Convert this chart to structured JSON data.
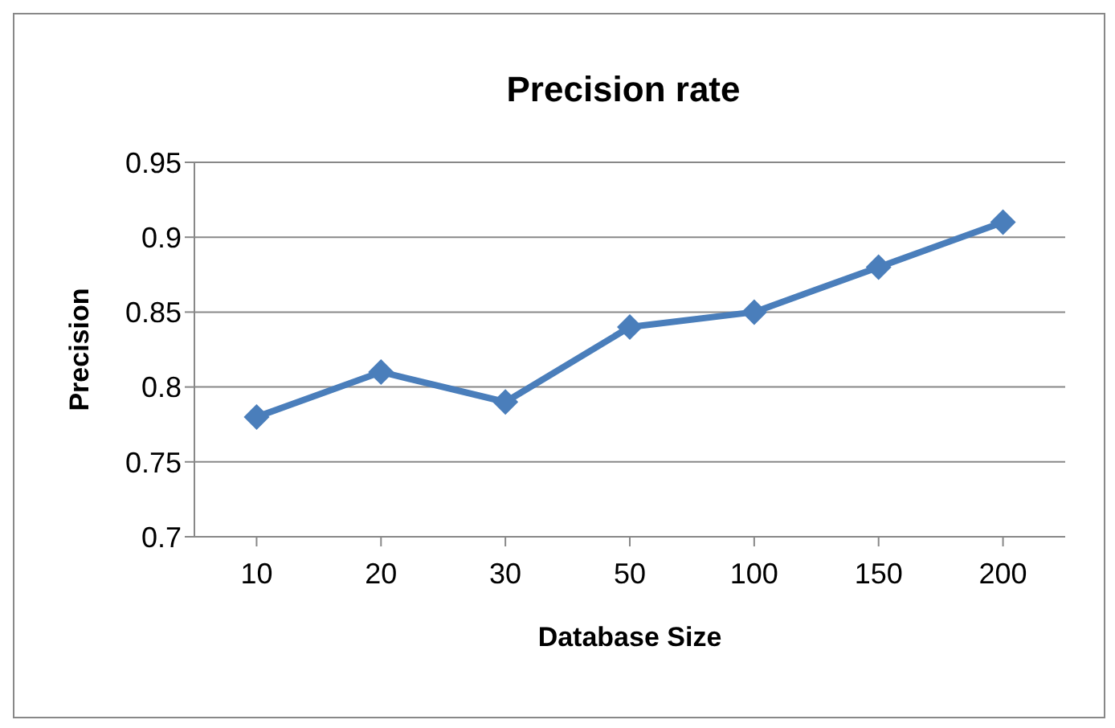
{
  "chart_data": {
    "type": "line",
    "title": "Precision rate",
    "xlabel": "Database Size",
    "ylabel": "Precision",
    "categories": [
      "10",
      "20",
      "30",
      "50",
      "100",
      "150",
      "200"
    ],
    "series": [
      {
        "color": "#4a7ebb",
        "values": [
          0.78,
          0.81,
          0.79,
          0.84,
          0.85,
          0.88,
          0.91
        ]
      }
    ],
    "ylim": [
      0.7,
      0.95
    ],
    "yticks": [
      0.7,
      0.75,
      0.8,
      0.85,
      0.9,
      0.95
    ],
    "grid": "y",
    "legend": false,
    "marker": "diamond",
    "line_style": "solid"
  }
}
